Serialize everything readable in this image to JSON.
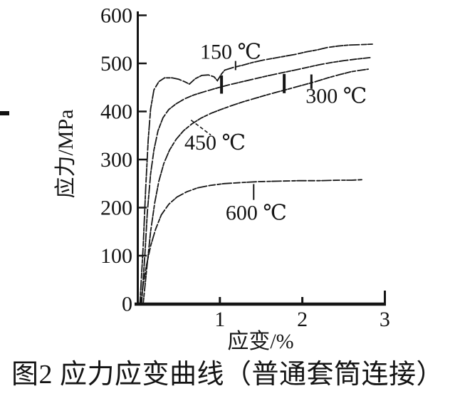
{
  "figure": {
    "background": "#ffffff",
    "ink_color": "#151515"
  },
  "chart_data": {
    "type": "line",
    "title": "图2 应力应变曲线（普通套筒连接）",
    "xlabel": "应变/%",
    "ylabel": "应力/MPa",
    "xlim": [
      0,
      3
    ],
    "ylim": [
      0,
      600
    ],
    "x_ticks": [
      1,
      2,
      3
    ],
    "x_tick_labels": [
      "1",
      "2",
      "3"
    ],
    "y_ticks": [
      0,
      100,
      200,
      300,
      400,
      500,
      600
    ],
    "y_tick_labels": [
      "0",
      "100",
      "200",
      "300",
      "400",
      "500",
      "600"
    ],
    "grid": false,
    "legend": "inline-labels",
    "series": [
      {
        "name": "curve-150c",
        "label": "150 ℃",
        "label_at": [
          0.76,
          510
        ],
        "dash": "10 2 5 2 14 3 7 2",
        "points": [
          [
            0.03,
            0
          ],
          [
            0.07,
            120
          ],
          [
            0.1,
            240
          ],
          [
            0.13,
            340
          ],
          [
            0.16,
            405
          ],
          [
            0.2,
            445
          ],
          [
            0.26,
            462
          ],
          [
            0.33,
            470
          ],
          [
            0.42,
            470
          ],
          [
            0.5,
            467
          ],
          [
            0.57,
            462
          ],
          [
            0.63,
            457
          ],
          [
            0.7,
            468
          ],
          [
            0.78,
            475
          ],
          [
            0.86,
            476
          ],
          [
            0.93,
            472
          ],
          [
            0.97,
            464
          ],
          [
            1.02,
            478
          ],
          [
            1.06,
            486
          ],
          [
            1.15,
            491
          ],
          [
            1.27,
            496
          ],
          [
            1.4,
            502
          ],
          [
            1.53,
            507
          ],
          [
            1.66,
            511
          ],
          [
            1.79,
            515
          ],
          [
            1.92,
            519
          ],
          [
            2.05,
            524
          ],
          [
            2.18,
            528
          ],
          [
            2.3,
            533
          ],
          [
            2.43,
            536
          ],
          [
            2.56,
            538
          ],
          [
            2.7,
            539
          ],
          [
            2.85,
            540
          ]
        ]
      },
      {
        "name": "curve-300c",
        "label": "300 ℃",
        "label_at": [
          2.04,
          418
        ],
        "dash": "9 2 6 2 12 3",
        "points": [
          [
            0.05,
            0
          ],
          [
            0.09,
            100
          ],
          [
            0.12,
            190
          ],
          [
            0.16,
            270
          ],
          [
            0.2,
            320
          ],
          [
            0.25,
            360
          ],
          [
            0.31,
            387
          ],
          [
            0.38,
            404
          ],
          [
            0.47,
            416
          ],
          [
            0.57,
            426
          ],
          [
            0.68,
            434
          ],
          [
            0.81,
            441
          ],
          [
            0.95,
            448
          ],
          [
            1.1,
            455
          ],
          [
            1.25,
            461
          ],
          [
            1.4,
            467
          ],
          [
            1.55,
            473
          ],
          [
            1.71,
            479
          ],
          [
            1.88,
            485
          ],
          [
            2.04,
            491
          ],
          [
            2.2,
            497
          ],
          [
            2.36,
            502
          ],
          [
            2.52,
            506
          ],
          [
            2.66,
            509
          ],
          [
            2.82,
            512
          ]
        ]
      },
      {
        "name": "curve-450c",
        "label": "450 ℃",
        "label_at": [
          0.57,
          321
        ],
        "dash": "8 2 5 3 11 2",
        "points": [
          [
            0.07,
            0
          ],
          [
            0.12,
            85
          ],
          [
            0.16,
            150
          ],
          [
            0.21,
            210
          ],
          [
            0.26,
            255
          ],
          [
            0.32,
            292
          ],
          [
            0.39,
            320
          ],
          [
            0.47,
            342
          ],
          [
            0.56,
            360
          ],
          [
            0.66,
            374
          ],
          [
            0.77,
            386
          ],
          [
            0.89,
            396
          ],
          [
            1.01,
            404
          ],
          [
            1.14,
            412
          ],
          [
            1.28,
            420
          ],
          [
            1.42,
            427
          ],
          [
            1.56,
            434
          ],
          [
            1.71,
            441
          ],
          [
            1.86,
            448
          ],
          [
            2.01,
            455
          ],
          [
            2.16,
            462
          ],
          [
            2.31,
            470
          ],
          [
            2.46,
            477
          ],
          [
            2.6,
            483
          ],
          [
            2.72,
            486
          ],
          [
            2.8,
            488
          ]
        ]
      },
      {
        "name": "curve-600c",
        "label": "600 ℃",
        "label_at": [
          1.07,
          175
        ],
        "dash": "9 3 5 2 13 3",
        "points": [
          [
            0.04,
            0
          ],
          [
            0.07,
            40
          ],
          [
            0.11,
            80
          ],
          [
            0.16,
            120
          ],
          [
            0.22,
            155
          ],
          [
            0.29,
            185
          ],
          [
            0.38,
            207
          ],
          [
            0.48,
            222
          ],
          [
            0.6,
            233
          ],
          [
            0.73,
            241
          ],
          [
            0.88,
            246
          ],
          [
            1.05,
            250
          ],
          [
            1.25,
            252
          ],
          [
            1.47,
            254
          ],
          [
            1.7,
            255
          ],
          [
            1.95,
            256
          ],
          [
            2.2,
            256
          ],
          [
            2.45,
            257
          ],
          [
            2.6,
            257
          ],
          [
            2.72,
            258
          ]
        ]
      }
    ],
    "annotations": [
      {
        "kind": "vtick",
        "name": "marker-150c",
        "x": 1.19,
        "y1": 486,
        "y2": 505,
        "w": 2
      },
      {
        "kind": "vtick",
        "name": "marker-yield-150c",
        "x": 1.02,
        "y1": 437,
        "y2": 475,
        "w": 4
      },
      {
        "kind": "vtick",
        "name": "marker-300c",
        "x": 1.78,
        "y1": 438,
        "y2": 478,
        "w": 4
      },
      {
        "kind": "vtick",
        "name": "marker-450c",
        "x": 2.11,
        "y1": 447,
        "y2": 477,
        "w": 3
      },
      {
        "kind": "vtick",
        "name": "marker-600c",
        "x": 1.41,
        "y1": 216,
        "y2": 249,
        "w": 2
      },
      {
        "kind": "leader",
        "name": "leader-450c",
        "x1": 0.65,
        "y1": 382,
        "x2": 0.89,
        "y2": 351,
        "w": 1.6
      }
    ]
  }
}
